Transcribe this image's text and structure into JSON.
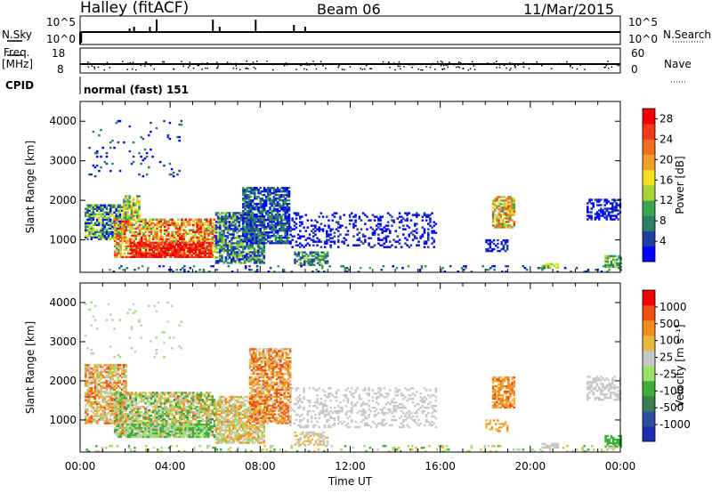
{
  "header": {
    "station": "Halley (fitACF)",
    "beam": "Beam 06",
    "date": "11/Mar/2015"
  },
  "info_panels": {
    "nsky_label": "N.Sky",
    "nsky_ticks": [
      "10^5",
      "10^0"
    ],
    "nsearch_label": "N.Search",
    "nsearch_ticks": [
      "10^5",
      "10^0"
    ],
    "freq_label": "Freq.",
    "freq_unit": "[MHz]",
    "freq_ticks": [
      "18",
      "8"
    ],
    "nave_label": "Nave",
    "nave_ticks": [
      "60",
      "0"
    ],
    "cpid_label": "CPID",
    "cpid_value": "normal (fast) 151"
  },
  "colors": {
    "power": [
      "#0000ff",
      "#1f3fa0",
      "#2d7f6a",
      "#3aa550",
      "#a9d43a",
      "#f4e020",
      "#f0a028",
      "#f07020",
      "#f03a18",
      "#f00000"
    ],
    "velocity": [
      "#1d2fb0",
      "#2e4f9f",
      "#3a7f4e",
      "#3fae38",
      "#9be06a",
      "#c8c8c8",
      "#e8b840",
      "#f08c20",
      "#f05010",
      "#f00000"
    ],
    "line": "#000000"
  },
  "chart_data": [
    {
      "type": "heatmap",
      "panel": "power",
      "ylabel": "Slant Range [km]",
      "yticks": [
        "1000",
        "2000",
        "3000",
        "4000"
      ],
      "ylim": [
        180,
        4500
      ],
      "xlim": [
        0,
        24
      ],
      "colorbar_label": "Power [dB]",
      "colorbar_ticks": [
        "4",
        "8",
        "12",
        "16",
        "20",
        "24",
        "28"
      ],
      "color_range": [
        0,
        30
      ]
    },
    {
      "type": "heatmap",
      "panel": "velocity",
      "ylabel": "Slant Range [km]",
      "yticks": [
        "1000",
        "2000",
        "3000",
        "4000"
      ],
      "ylim": [
        180,
        4500
      ],
      "xlim": [
        0,
        24
      ],
      "colorbar_label": "Velocity [m s⁻¹]",
      "colorbar_ticks": [
        "1000",
        "500",
        "100",
        "25",
        "-25",
        "-100",
        "-500",
        "-1000"
      ]
    }
  ],
  "x_axis": {
    "label": "Time UT",
    "ticks": [
      "00:00",
      "04:00",
      "08:00",
      "12:00",
      "16:00",
      "20:00",
      "00:00"
    ]
  }
}
